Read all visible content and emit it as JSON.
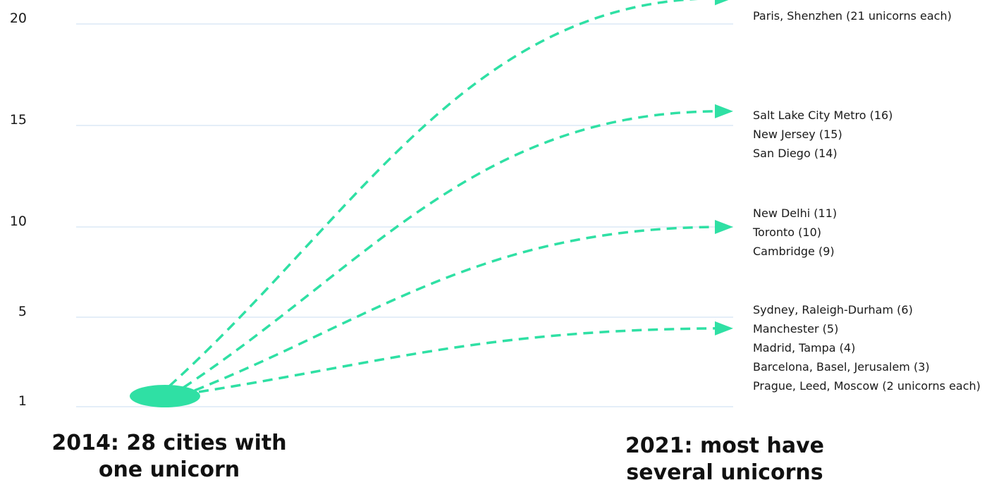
{
  "chart_data": {
    "type": "line",
    "ylim": [
      0,
      21
    ],
    "y_ticks": [
      "20",
      "15",
      "10",
      "5",
      "1"
    ],
    "grid": true,
    "start": {
      "label_lines": [
        "2014: 28 cities with",
        "one unicorn"
      ],
      "y": 1
    },
    "end_label_lines": [
      "2021: most have",
      "several unicorns"
    ],
    "arrows": [
      {
        "to_y": 20.2,
        "labels": [
          "Paris, Shenzhen (21 unicorns each)"
        ]
      },
      {
        "to_y": 14.7,
        "labels": [
          "Salt Lake City Metro (16)",
          "New Jersey (15)",
          "San Diego (14)"
        ]
      },
      {
        "to_y": 9,
        "labels": [
          "New Delhi (11)",
          "Toronto (10)",
          "Cambridge (9)"
        ]
      },
      {
        "to_y": 3.5,
        "labels": [
          "Sydney, Raleigh-Durham (6)",
          "Manchester (5)",
          "Madrid, Tampa (4)",
          "Barcelona, Basel, Jerusalem (3)",
          "Prague, Leed, Moscow (2 unicorns each)"
        ]
      }
    ]
  },
  "colors": {
    "accent": "#2fe0a4",
    "grid": "#dce8f5",
    "text": "#1a1a1a"
  }
}
